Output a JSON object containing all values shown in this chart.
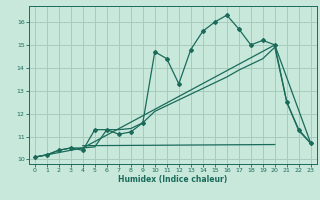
{
  "xlabel": "Humidex (Indice chaleur)",
  "bg_color": "#c8e8dc",
  "line_color": "#1a6b5a",
  "grid_color": "#a8ccbc",
  "xlim": [
    -0.5,
    23.5
  ],
  "ylim": [
    9.8,
    16.7
  ],
  "yticks": [
    10,
    11,
    12,
    13,
    14,
    15,
    16
  ],
  "xticks": [
    0,
    1,
    2,
    3,
    4,
    5,
    6,
    7,
    8,
    9,
    10,
    11,
    12,
    13,
    14,
    15,
    16,
    17,
    18,
    19,
    20,
    21,
    22,
    23
  ],
  "series1_x": [
    0,
    1,
    2,
    3,
    4,
    5,
    6,
    7,
    8,
    9,
    10,
    11,
    12,
    13,
    14,
    15,
    16,
    17,
    18,
    19,
    20,
    21,
    22,
    23
  ],
  "series1_y": [
    10.1,
    10.2,
    10.4,
    10.5,
    10.4,
    11.3,
    11.3,
    11.1,
    11.2,
    11.6,
    14.7,
    14.4,
    13.3,
    14.8,
    15.6,
    16.0,
    16.3,
    15.7,
    15.0,
    15.2,
    15.0,
    12.5,
    11.3,
    10.7
  ],
  "series2_x": [
    0,
    1,
    2,
    3,
    4,
    5,
    6,
    7,
    8,
    9,
    10,
    11,
    12,
    13,
    14,
    15,
    16,
    17,
    18,
    19,
    20,
    21,
    22,
    23
  ],
  "series2_y": [
    10.1,
    10.2,
    10.4,
    10.5,
    10.5,
    10.55,
    11.3,
    11.3,
    11.35,
    11.6,
    12.1,
    12.35,
    12.6,
    12.85,
    13.1,
    13.35,
    13.6,
    13.9,
    14.15,
    14.4,
    14.9,
    12.5,
    11.25,
    10.7
  ],
  "series3_x": [
    0,
    4,
    20,
    23
  ],
  "series3_y": [
    10.1,
    10.5,
    15.0,
    10.7
  ],
  "flat_line_x": [
    4,
    20
  ],
  "flat_line_y": [
    10.6,
    10.65
  ]
}
